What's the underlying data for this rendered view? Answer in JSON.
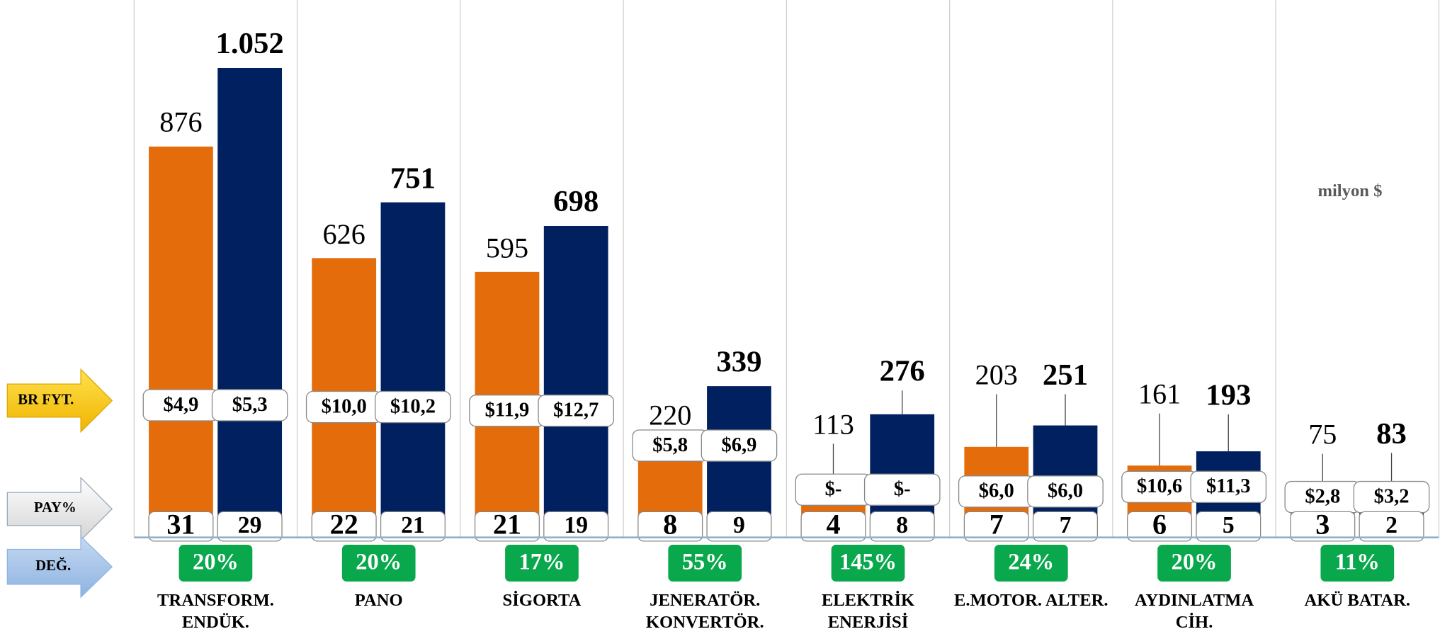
{
  "chart_data": {
    "type": "bar",
    "unit_note": "milyon $",
    "row_labels": [
      "BR FYT.",
      "PAY%",
      "DEĞ."
    ],
    "categories": [
      [
        "TRANSFORM.",
        "ENDÜK."
      ],
      [
        "PANO"
      ],
      [
        "SİGORTA"
      ],
      [
        "JENERATÖR.",
        "KONVERTÖR."
      ],
      [
        "ELEKTRİK",
        "ENERJİSİ"
      ],
      [
        "E.MOTOR. ALTER."
      ],
      [
        "AYDINLATMA",
        "CİH."
      ],
      [
        "AKÜ BATAR."
      ]
    ],
    "series": [
      {
        "color": "#e46c0a",
        "values": [
          876,
          626,
          595,
          220,
          113,
          203,
          161,
          75
        ],
        "value_labels": [
          "876",
          "626",
          "595",
          "220",
          "113",
          "203",
          "161",
          "75"
        ],
        "price_labels": [
          "$4,9",
          "$10,0",
          "$11,9",
          "$5,8",
          "$-",
          "$6,0",
          "$10,6",
          "$2,8"
        ],
        "shares": [
          31,
          22,
          21,
          8,
          4,
          7,
          6,
          3
        ]
      },
      {
        "color": "#002060",
        "values": [
          1052,
          751,
          698,
          339,
          276,
          251,
          193,
          83
        ],
        "value_labels": [
          "1.052",
          "751",
          "698",
          "339",
          "276",
          "251",
          "193",
          "83"
        ],
        "price_labels": [
          "$5,3",
          "$10,2",
          "$12,7",
          "$6,9",
          "$-",
          "$6,0",
          "$11,3",
          "$3,2"
        ],
        "shares": [
          29,
          21,
          19,
          9,
          8,
          7,
          5,
          2
        ]
      }
    ],
    "changes": [
      20,
      20,
      17,
      55,
      145,
      24,
      20,
      11
    ],
    "change_labels": [
      "20%",
      "20%",
      "17%",
      "55%",
      "145%",
      "24%",
      "20%",
      "11%"
    ],
    "change_color": "#0aa84c",
    "ylim": [
      0,
      1200
    ],
    "grid": true
  }
}
